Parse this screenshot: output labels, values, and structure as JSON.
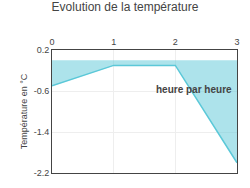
{
  "chart_data": {
    "type": "area",
    "title": "Evolution de la température",
    "ylabel": "Température en °C",
    "x": [
      0,
      1,
      2,
      3
    ],
    "values": [
      -0.5,
      -0.1,
      -0.1,
      -2.0
    ],
    "baseline": 0.0,
    "color": "#5bc8d8",
    "xlim": [
      0,
      3
    ],
    "ylim": [
      -2.2,
      0.2
    ],
    "xticks": [
      0,
      1,
      2,
      3
    ],
    "yticks": [
      0.2,
      -0.6,
      -1.4,
      -2.2
    ],
    "grid": true,
    "annotations": [
      {
        "text": "heure par heure",
        "x": 2.3,
        "y": -0.42
      }
    ]
  }
}
